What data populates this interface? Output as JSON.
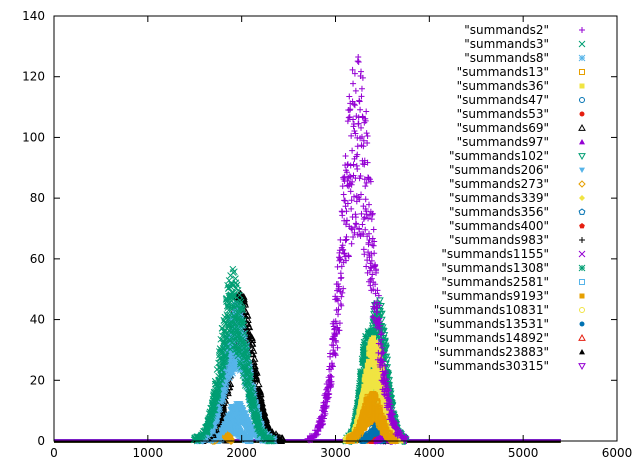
{
  "chart_data": {
    "type": "scatter",
    "title": "",
    "xlabel": "",
    "ylabel": "",
    "xlim": [
      0,
      6000
    ],
    "ylim": [
      0,
      140
    ],
    "x_ticks": [
      0,
      1000,
      2000,
      3000,
      4000,
      5000,
      6000
    ],
    "y_ticks": [
      0,
      20,
      40,
      60,
      80,
      100,
      120,
      140
    ],
    "grid": false,
    "legend_position": "top-right",
    "baseline_range": [
      0,
      5400
    ],
    "series": [
      {
        "name": "\"summands2\"",
        "color": "#9400d3",
        "marker": "plus",
        "center": 3230,
        "width": 165,
        "peak": 124
      },
      {
        "name": "\"summands3\"",
        "color": "#009e73",
        "marker": "cross",
        "center": 1910,
        "width": 130,
        "peak": 55
      },
      {
        "name": "\"summands8\"",
        "color": "#56b4e9",
        "marker": "star",
        "center": 1940,
        "width": 130,
        "peak": 44
      },
      {
        "name": "\"summands13\"",
        "color": "#e69f00",
        "marker": "box",
        "center": 3390,
        "width": 90,
        "peak": 15
      },
      {
        "name": "\"summands36\"",
        "color": "#f0e442",
        "marker": "filled-box",
        "center": 3410,
        "width": 100,
        "peak": 33
      },
      {
        "name": "\"summands47\"",
        "color": "#0072b2",
        "marker": "circle",
        "center": 3470,
        "width": 80,
        "peak": 6
      },
      {
        "name": "\"summands53\"",
        "color": "#e51e10",
        "marker": "filled-circle",
        "center": 3480,
        "width": 60,
        "peak": 7
      },
      {
        "name": "\"summands69\"",
        "color": "#000000",
        "marker": "triangle",
        "center": 1990,
        "width": 140,
        "peak": 47
      },
      {
        "name": "\"summands97\"",
        "color": "#9400d3",
        "marker": "filled-triangle",
        "center": 3520,
        "width": 45,
        "peak": 3
      },
      {
        "name": "\"summands102\"",
        "color": "#009e73",
        "marker": "triangle-down",
        "center": 3450,
        "width": 95,
        "peak": 45
      },
      {
        "name": "\"summands206\"",
        "color": "#56b4e9",
        "marker": "filled-triangle-down",
        "center": 1950,
        "width": 110,
        "peak": 12
      },
      {
        "name": "\"summands273\"",
        "color": "#e69f00",
        "marker": "diamond",
        "center": 1790,
        "width": 45,
        "peak": 4
      },
      {
        "name": "\"summands339\"",
        "color": "#f0e442",
        "marker": "filled-diamond",
        "center": 3400,
        "width": 85,
        "peak": 30
      },
      {
        "name": "\"summands356\"",
        "color": "#0072b2",
        "marker": "pentagon",
        "center": 3540,
        "width": 40,
        "peak": 2
      },
      {
        "name": "\"summands400\"",
        "color": "#e51e10",
        "marker": "filled-pentagon",
        "center": 3470,
        "width": 45,
        "peak": 5
      },
      {
        "name": "\"summands983\"",
        "color": "#000000",
        "marker": "plus",
        "center": 3550,
        "width": 35,
        "peak": 1
      },
      {
        "name": "\"summands1155\"",
        "color": "#9400d3",
        "marker": "cross",
        "center": 3530,
        "width": 40,
        "peak": 3
      },
      {
        "name": "\"summands1308\"",
        "color": "#009e73",
        "marker": "star",
        "center": 3340,
        "width": 75,
        "peak": 35
      },
      {
        "name": "\"summands2581\"",
        "color": "#56b4e9",
        "marker": "box",
        "center": 1900,
        "width": 80,
        "peak": 6
      },
      {
        "name": "\"summands9193\"",
        "color": "#e69f00",
        "marker": "filled-box",
        "center": 3370,
        "width": 70,
        "peak": 12
      },
      {
        "name": "\"summands10831\"",
        "color": "#f0e442",
        "marker": "circle",
        "center": 3430,
        "width": 55,
        "peak": 4
      },
      {
        "name": "\"summands13531\"",
        "color": "#0072b2",
        "marker": "filled-circle",
        "center": 3500,
        "width": 40,
        "peak": 3
      },
      {
        "name": "\"summands14892\"",
        "color": "#e51e10",
        "marker": "triangle",
        "center": 3480,
        "width": 40,
        "peak": 3
      },
      {
        "name": "\"summands23883\"",
        "color": "#000000",
        "marker": "filled-triangle",
        "center": 1790,
        "width": 30,
        "peak": 2
      },
      {
        "name": "\"summands30315\"",
        "color": "#9400d3",
        "marker": "triangle-down",
        "center": 3560,
        "width": 30,
        "peak": 1
      }
    ]
  }
}
